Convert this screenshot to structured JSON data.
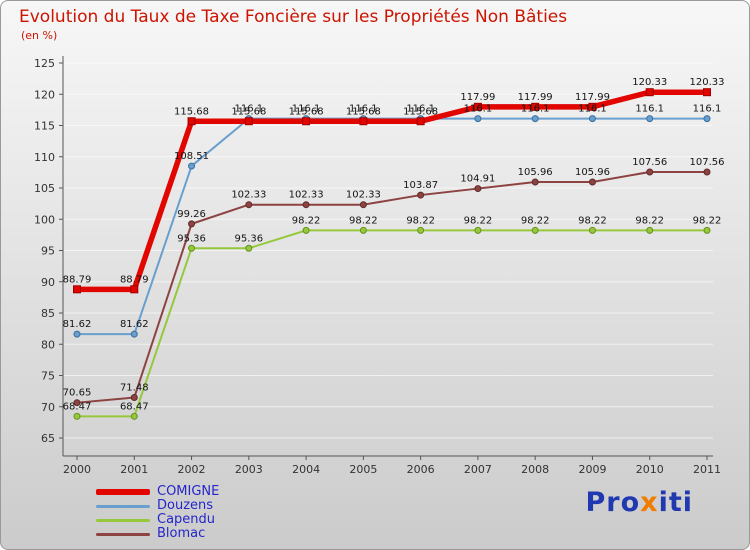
{
  "header": {
    "title": "Evolution du Taux de Taxe Foncière sur les Propriétés Non Bâties",
    "subtitle": "(en %)"
  },
  "chart_data": {
    "type": "line",
    "x": [
      2000,
      2001,
      2002,
      2003,
      2004,
      2005,
      2006,
      2007,
      2008,
      2009,
      2010,
      2011
    ],
    "ylim": [
      65,
      125
    ],
    "ytick_step": 5,
    "grid": true,
    "legend_position": "bottom-left",
    "xlabel": "",
    "ylabel": "",
    "series": [
      {
        "name": "COMIGNE",
        "color": "#e10600",
        "marker_edge": "#9e0000",
        "line_width": 5.5,
        "values": [
          88.79,
          88.79,
          115.68,
          115.68,
          115.68,
          115.68,
          115.68,
          117.99,
          117.99,
          117.99,
          120.33,
          120.33
        ]
      },
      {
        "name": "Douzens",
        "color": "#699fce",
        "marker_edge": "#3a6f9e",
        "line_width": 2,
        "values": [
          81.62,
          81.62,
          108.51,
          116.1,
          116.1,
          116.1,
          116.1,
          116.1,
          116.1,
          116.1,
          116.1,
          116.1
        ]
      },
      {
        "name": "Capendu",
        "color": "#96c83c",
        "marker_edge": "#648f1e",
        "line_width": 2,
        "values": [
          68.47,
          68.47,
          95.36,
          95.36,
          98.22,
          98.22,
          98.22,
          98.22,
          98.22,
          98.22,
          98.22,
          98.22
        ]
      },
      {
        "name": "Blomac",
        "color": "#8c4341",
        "marker_edge": "#5e2b29",
        "line_width": 2,
        "values": [
          70.65,
          71.48,
          99.26,
          102.33,
          102.33,
          102.33,
          103.87,
          104.91,
          105.96,
          105.96,
          107.56,
          107.56
        ]
      }
    ]
  },
  "logo": {
    "parts": [
      {
        "text": "Pro",
        "color": "#2038b0"
      },
      {
        "text": "x",
        "color": "#f07d00"
      },
      {
        "text": "iti",
        "color": "#2038b0"
      }
    ]
  }
}
